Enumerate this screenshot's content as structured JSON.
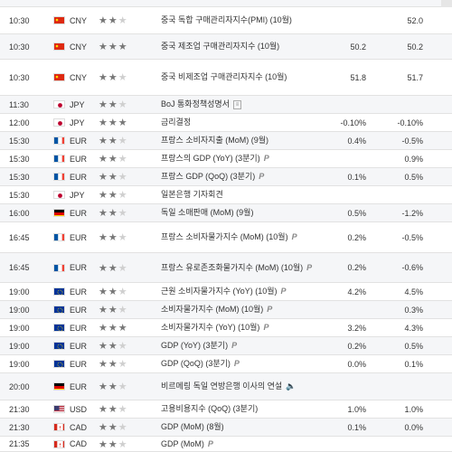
{
  "rows": [
    {
      "time": "10:30",
      "flag": "cn",
      "currency": "CNY",
      "stars": 2,
      "event": "중국 독합 구매관리자지수(PMI) (10월)",
      "mark": "",
      "forecast": "",
      "previous": "52.0"
    },
    {
      "time": "10:30",
      "flag": "cn",
      "currency": "CNY",
      "stars": 3,
      "event": "중국 제조업 구매관리자지수 (10월)",
      "mark": "",
      "forecast": "50.2",
      "previous": "50.2"
    },
    {
      "time": "10:30",
      "flag": "cn",
      "currency": "CNY",
      "stars": 2,
      "event": "중국 비제조업 구매관리자지수 (10월)",
      "mark": "",
      "forecast": "51.8",
      "previous": "51.7"
    },
    {
      "time": "11:30",
      "flag": "jp",
      "currency": "JPY",
      "stars": 2,
      "event": "BoJ 통화정책성명서",
      "mark": "doc",
      "forecast": "",
      "previous": ""
    },
    {
      "time": "12:00",
      "flag": "jp",
      "currency": "JPY",
      "stars": 3,
      "event": "금리결정",
      "mark": "",
      "forecast": "-0.10%",
      "previous": "-0.10%"
    },
    {
      "time": "15:30",
      "flag": "fr",
      "currency": "EUR",
      "stars": 2,
      "event": "프랑스 소비자지출 (MoM) (9월)",
      "mark": "",
      "forecast": "0.4%",
      "previous": "-0.5%"
    },
    {
      "time": "15:30",
      "flag": "fr",
      "currency": "EUR",
      "stars": 2,
      "event": "프랑스의 GDP (YoY) (3분기)",
      "mark": "P",
      "forecast": "",
      "previous": "0.9%"
    },
    {
      "time": "15:30",
      "flag": "fr",
      "currency": "EUR",
      "stars": 2,
      "event": "프랑스 GDP (QoQ) (3분기)",
      "mark": "P",
      "forecast": "0.1%",
      "previous": "0.5%"
    },
    {
      "time": "15:30",
      "flag": "jp",
      "currency": "JPY",
      "stars": 2,
      "event": "일본은행 기자회견",
      "mark": "",
      "forecast": "",
      "previous": ""
    },
    {
      "time": "16:00",
      "flag": "de",
      "currency": "EUR",
      "stars": 2,
      "event": "독일 소매판매 (MoM) (9월)",
      "mark": "",
      "forecast": "0.5%",
      "previous": "-1.2%"
    },
    {
      "time": "16:45",
      "flag": "fr",
      "currency": "EUR",
      "stars": 2,
      "event": "프랑스 소비자물가지수 (MoM) (10월)",
      "mark": "P",
      "forecast": "0.2%",
      "previous": "-0.5%"
    },
    {
      "time": "16:45",
      "flag": "fr",
      "currency": "EUR",
      "stars": 2,
      "event": "프랑스 유로존조화물가지수 (MoM) (10월)",
      "mark": "P",
      "forecast": "0.2%",
      "previous": "-0.6%"
    },
    {
      "time": "19:00",
      "flag": "eu",
      "currency": "EUR",
      "stars": 2,
      "event": "근원 소비자물가지수 (YoY) (10월)",
      "mark": "P",
      "forecast": "4.2%",
      "previous": "4.5%"
    },
    {
      "time": "19:00",
      "flag": "eu",
      "currency": "EUR",
      "stars": 2,
      "event": "소비자물가지수 (MoM) (10월)",
      "mark": "P",
      "forecast": "",
      "previous": "0.3%"
    },
    {
      "time": "19:00",
      "flag": "eu",
      "currency": "EUR",
      "stars": 3,
      "event": "소비자물가지수 (YoY) (10월)",
      "mark": "P",
      "forecast": "3.2%",
      "previous": "4.3%"
    },
    {
      "time": "19:00",
      "flag": "eu",
      "currency": "EUR",
      "stars": 2,
      "event": "GDP (YoY) (3분기)",
      "mark": "P",
      "forecast": "0.2%",
      "previous": "0.5%"
    },
    {
      "time": "19:00",
      "flag": "eu",
      "currency": "EUR",
      "stars": 2,
      "event": "GDP (QoQ) (3분기)",
      "mark": "P",
      "forecast": "0.0%",
      "previous": "0.1%"
    },
    {
      "time": "20:00",
      "flag": "de",
      "currency": "EUR",
      "stars": 2,
      "event": "비르메링 독일 연방은행 이사의 연설",
      "mark": "audio",
      "forecast": "",
      "previous": ""
    },
    {
      "time": "21:30",
      "flag": "us",
      "currency": "USD",
      "stars": 2,
      "event": "고용비용지수 (QoQ) (3분기)",
      "mark": "",
      "forecast": "1.0%",
      "previous": "1.0%"
    },
    {
      "time": "21:30",
      "flag": "ca",
      "currency": "CAD",
      "stars": 2,
      "event": "GDP (MoM) (8월)",
      "mark": "",
      "forecast": "0.1%",
      "previous": "0.0%"
    },
    {
      "time": "21:35",
      "flag": "ca",
      "currency": "CAD",
      "stars": 2,
      "event": "GDP (MoM)",
      "mark": "P",
      "forecast": "",
      "previous": ""
    }
  ],
  "star_char": "★"
}
